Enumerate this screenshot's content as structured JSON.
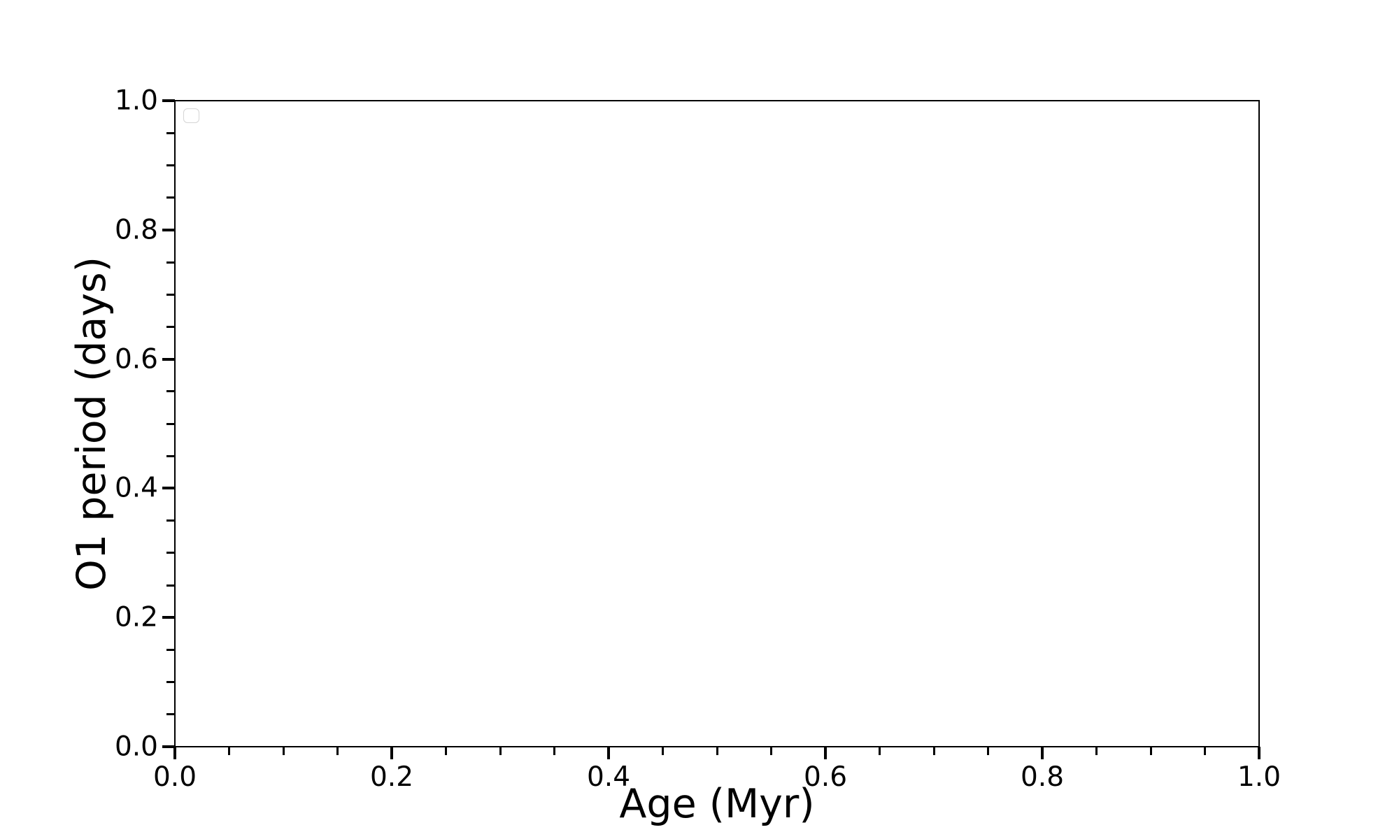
{
  "chart_data": {
    "type": "scatter",
    "title": "",
    "xlabel": "Age (Myr)",
    "ylabel": "O1 period (days)",
    "xlim": [
      0.0,
      1.0
    ],
    "ylim": [
      0.0,
      1.0
    ],
    "xticks": {
      "values": [
        0.0,
        0.2,
        0.4,
        0.6,
        0.8,
        1.0
      ],
      "labels": [
        "0.0",
        "0.2",
        "0.4",
        "0.6",
        "0.8",
        "1.0"
      ]
    },
    "yticks": {
      "values": [
        0.0,
        0.2,
        0.4,
        0.6,
        0.8,
        1.0
      ],
      "labels": [
        "0.0",
        "0.2",
        "0.4",
        "0.6",
        "0.8",
        "1.0"
      ]
    },
    "minor_tick_step": 0.05,
    "grid": false,
    "series": [],
    "legend": {
      "visible": true,
      "entries": [],
      "position": "upper left"
    },
    "colors": {
      "background": "#ffffff",
      "spine": "#000000",
      "tick": "#000000",
      "text": "#000000",
      "legend_border": "#d5d5d5",
      "legend_face": "#ffffff"
    }
  }
}
